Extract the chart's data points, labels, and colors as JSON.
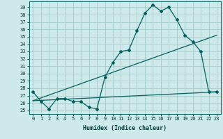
{
  "xlabel": "Humidex (Indice chaleur)",
  "ylabel": "",
  "background_color": "#cee9e9",
  "grid_color": "#aacfcf",
  "line_color": "#006060",
  "xlim": [
    -0.5,
    23.5
  ],
  "ylim": [
    24.5,
    39.8
  ],
  "xticks": [
    0,
    1,
    2,
    3,
    4,
    5,
    6,
    7,
    8,
    9,
    10,
    11,
    12,
    13,
    14,
    15,
    16,
    17,
    18,
    19,
    20,
    21,
    22,
    23
  ],
  "yticks": [
    25,
    26,
    27,
    28,
    29,
    30,
    31,
    32,
    33,
    34,
    35,
    36,
    37,
    38,
    39
  ],
  "curve1_x": [
    0,
    1,
    2,
    3,
    4,
    5,
    6,
    7,
    8,
    9,
    10,
    11,
    12,
    13,
    14,
    15,
    16,
    17,
    18,
    19,
    20,
    21,
    22,
    23
  ],
  "curve1_y": [
    27.5,
    26.2,
    25.2,
    26.6,
    26.6,
    26.2,
    26.2,
    25.4,
    25.2,
    29.5,
    31.5,
    33.0,
    33.2,
    35.8,
    38.2,
    39.3,
    38.5,
    39.0,
    37.3,
    35.2,
    34.3,
    33.0,
    27.5,
    27.5
  ],
  "curve2_x": [
    0,
    23
  ],
  "curve2_y": [
    26.3,
    27.5
  ],
  "curve3_x": [
    0,
    23
  ],
  "curve3_y": [
    26.3,
    35.2
  ]
}
